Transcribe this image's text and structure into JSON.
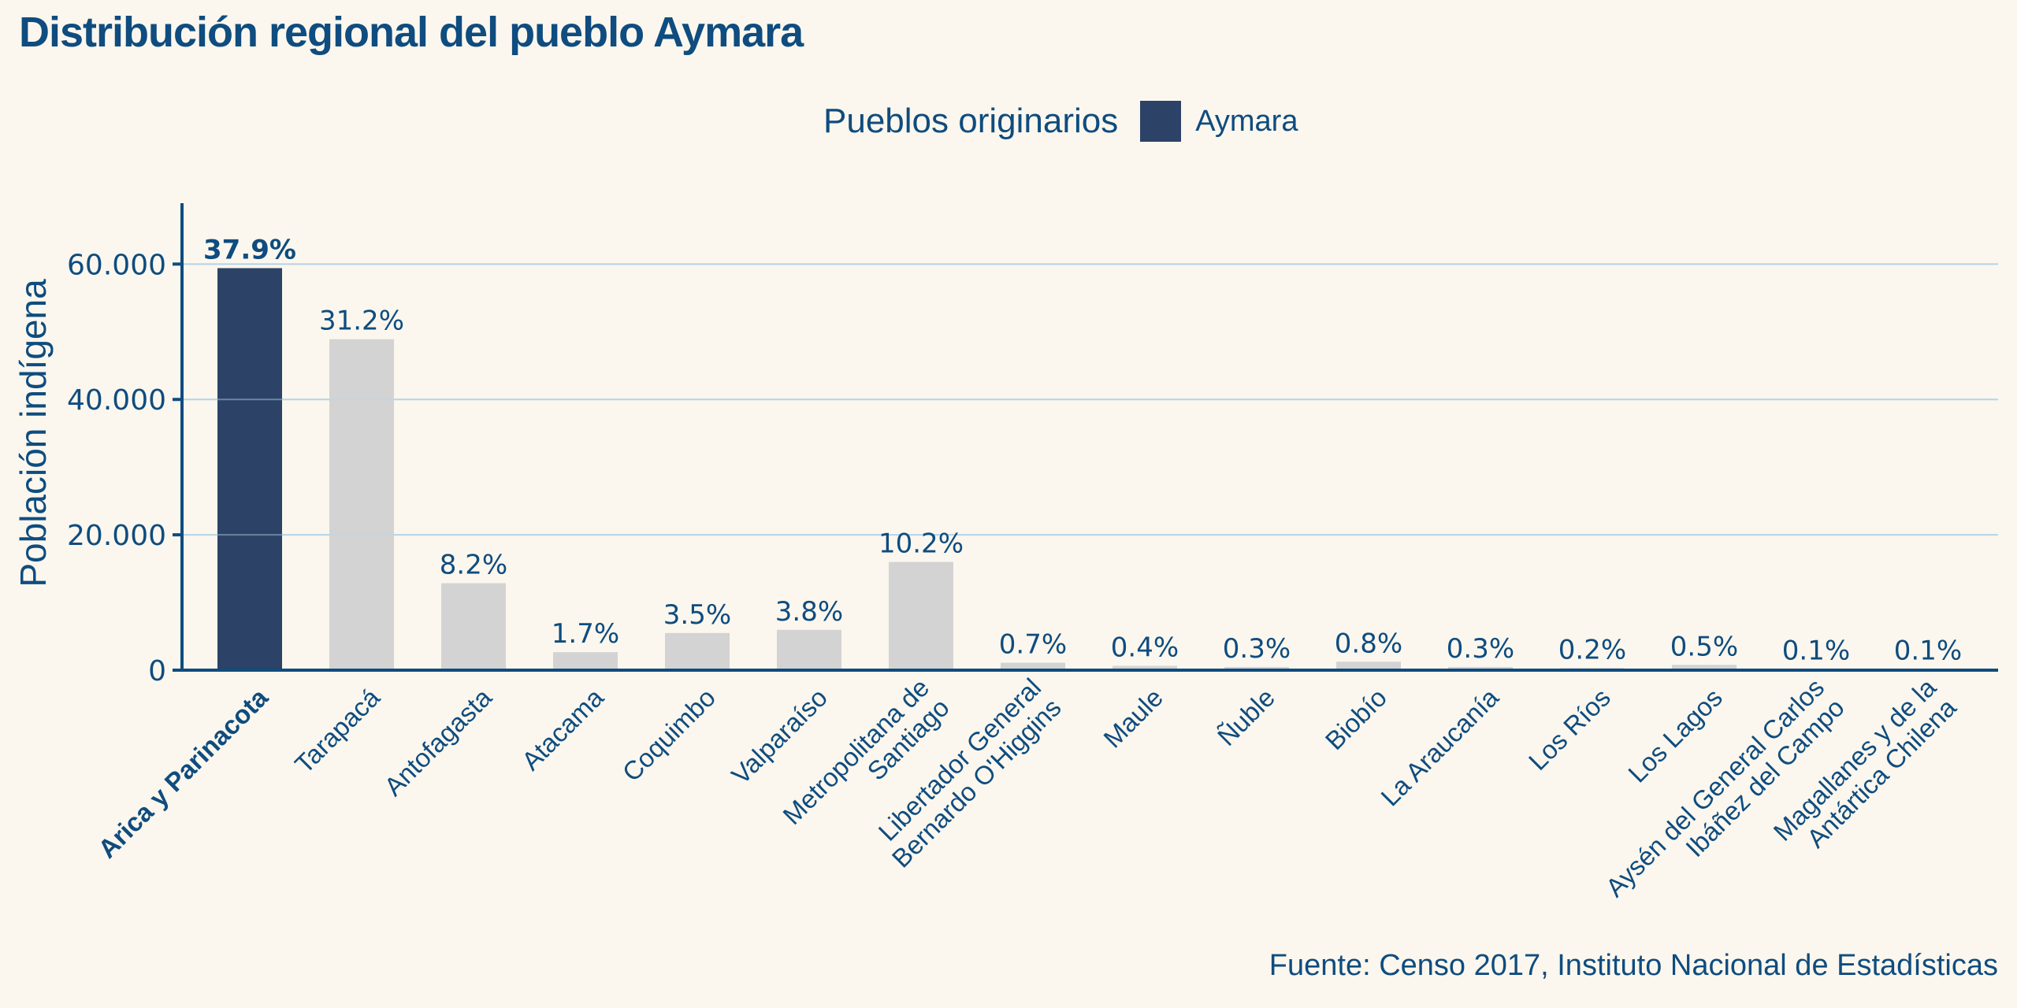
{
  "title": "Distribución regional del pueblo Aymara",
  "legend": {
    "title": "Pueblos originarios",
    "items": [
      {
        "label": "Aymara",
        "color": "#2C4266"
      }
    ]
  },
  "source": "Fuente: Censo 2017, Instituto Nacional de Estadísticas",
  "colors": {
    "text": "#0F4C7F",
    "highlight_bar": "#2C4266",
    "other_bar": "#D3D3D3",
    "grid": "#B8D4E6",
    "axis": "#0F4C7F",
    "background": "#FBF7EE"
  },
  "chart_data": {
    "type": "bar",
    "title": "Distribución regional del pueblo Aymara",
    "xlabel": "",
    "ylabel": "Población indígena",
    "ylim": [
      0,
      69000
    ],
    "yticks": [
      0,
      20000,
      40000,
      60000
    ],
    "ytick_labels": [
      "0",
      "20.000",
      "40.000",
      "60.000"
    ],
    "grid": "horizontal",
    "legend_position": "top-center",
    "highlight_category": "Arica y Parinacota",
    "categories": [
      [
        "Arica y Parinacota"
      ],
      [
        "Tarapacá"
      ],
      [
        "Antofagasta"
      ],
      [
        "Atacama"
      ],
      [
        "Coquimbo"
      ],
      [
        "Valparaíso"
      ],
      [
        "Metropolitana de",
        "Santiago"
      ],
      [
        "Libertador General",
        "Bernardo O'Higgins"
      ],
      [
        "Maule"
      ],
      [
        "Ñuble"
      ],
      [
        "Biobío"
      ],
      [
        "La Araucanía"
      ],
      [
        "Los Ríos"
      ],
      [
        "Los Lagos"
      ],
      [
        "Aysén del General Carlos",
        "Ibáñez del Campo"
      ],
      [
        "Magallanes y de la",
        "Antártica Chilena"
      ]
    ],
    "values": [
      59400,
      48900,
      12850,
      2660,
      5490,
      5960,
      15990,
      1100,
      630,
      470,
      1250,
      470,
      310,
      780,
      160,
      160
    ],
    "data_labels": [
      "37.9%",
      "31.2%",
      "8.2%",
      "1.7%",
      "3.5%",
      "3.8%",
      "10.2%",
      "0.7%",
      "0.4%",
      "0.3%",
      "0.8%",
      "0.3%",
      "0.2%",
      "0.5%",
      "0.1%",
      "0.1%"
    ]
  }
}
